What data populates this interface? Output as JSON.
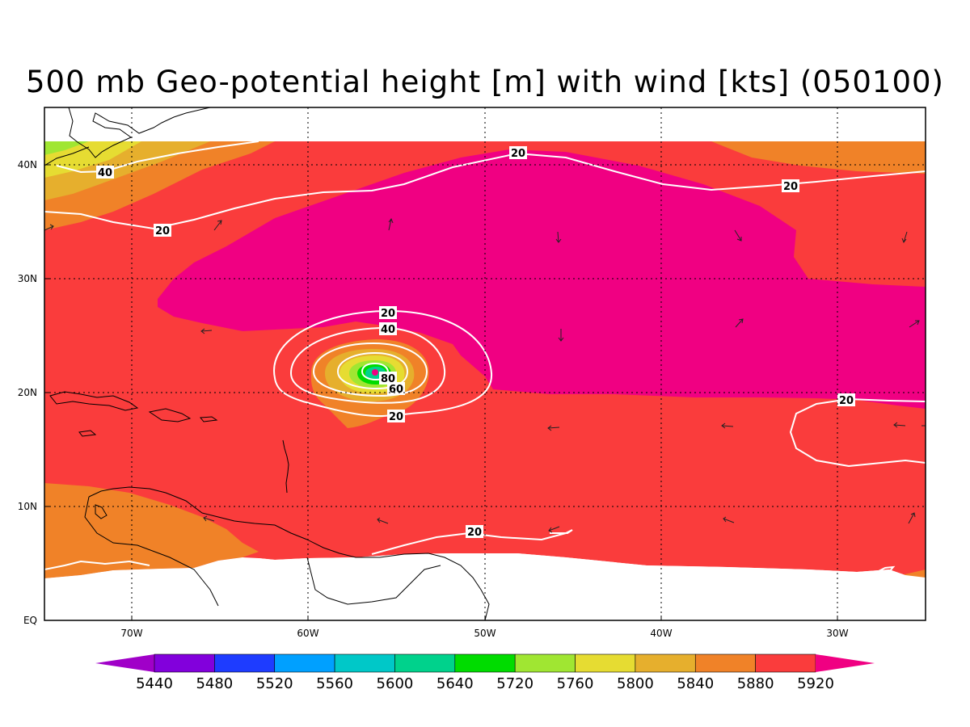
{
  "title": "500 mb Geo-potential height [m] with wind [kts] (050100)",
  "map": {
    "lon_ticks": [
      {
        "label": "70W",
        "lon": -70
      },
      {
        "label": "60W",
        "lon": -60
      },
      {
        "label": "50W",
        "lon": -50
      },
      {
        "label": "40W",
        "lon": -40
      },
      {
        "label": "30W",
        "lon": -30
      }
    ],
    "lat_ticks": [
      {
        "label": "EQ",
        "lat": 0
      },
      {
        "label": "10N",
        "lat": 10
      },
      {
        "label": "20N",
        "lat": 20
      },
      {
        "label": "30N",
        "lat": 30
      },
      {
        "label": "40N",
        "lat": 40
      }
    ],
    "contour_labels": [
      "20",
      "40",
      "60",
      "80"
    ]
  },
  "colorbar": {
    "levels": [
      "5440",
      "5480",
      "5520",
      "5560",
      "5600",
      "5640",
      "5720",
      "5760",
      "5800",
      "5840",
      "5880",
      "5920"
    ],
    "colors": [
      "#a000c8",
      "#8200dc",
      "#1e3cff",
      "#00a0ff",
      "#00c8c8",
      "#00d28c",
      "#00dc00",
      "#a0e632",
      "#e6dc32",
      "#e6af2d",
      "#f08228",
      "#fa3c3c",
      "#f00082"
    ]
  }
}
